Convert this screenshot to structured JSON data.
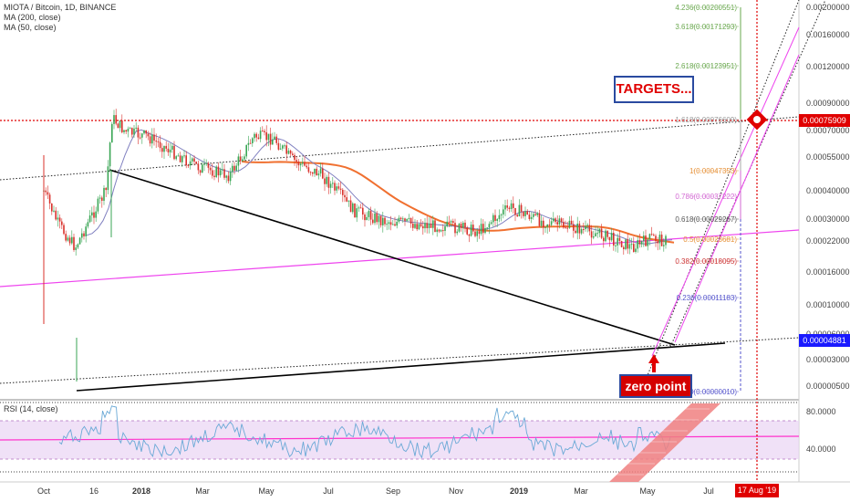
{
  "header": {
    "symbol_line": "MIOTA / Bitcoin, 1D, BINANCE",
    "ma200": "MA (200, close)",
    "ma50": "MA (50, close)",
    "rsi": "RSI (14, close)"
  },
  "chart_data": {
    "type": "line",
    "title": "MIOTA / Bitcoin, 1D, BINANCE",
    "scale": "log",
    "price_axis_ticks": [
      "0.00200000",
      "0.00160000",
      "0.00120000",
      "0.00090000",
      "0.00070000",
      "0.00055000",
      "0.00040000",
      "0.00030000",
      "0.00022000",
      "0.00016000",
      "0.00010000",
      "0.00006000",
      "0.00003000",
      "0.00000500"
    ],
    "x_tick_labels": [
      "Oct",
      "16",
      "2018",
      "Mar",
      "May",
      "Jul",
      "Sep",
      "Nov",
      "2019",
      "Mar",
      "May",
      "Jul"
    ],
    "price_series": {
      "name": "MIOTA/BTC",
      "x": [
        "2017-10-01",
        "2017-10-15",
        "2017-11-01",
        "2017-11-15",
        "2017-12-01",
        "2017-12-07",
        "2017-12-20",
        "2018-01-10",
        "2018-02-01",
        "2018-03-01",
        "2018-04-01",
        "2018-04-25",
        "2018-05-15",
        "2018-06-01",
        "2018-07-01",
        "2018-08-01",
        "2018-09-01",
        "2018-10-01",
        "2018-11-01",
        "2018-12-01",
        "2019-01-01",
        "2019-02-01",
        "2019-03-01",
        "2019-04-01",
        "2019-05-01",
        "2019-05-20",
        "2019-06-01"
      ],
      "y": [
        0.00011,
        6.5e-05,
        4.5e-05,
        7e-05,
        0.00011,
        0.00035,
        0.00028,
        0.00026,
        0.00021,
        0.00016,
        0.00014,
        0.00026,
        0.00025,
        0.00018,
        0.00014,
        8e-05,
        6.8e-05,
        6.5e-05,
        6.2e-05,
        5.8e-05,
        8.5e-05,
        6.8e-05,
        6.2e-05,
        5.5e-05,
        4.5e-05,
        5.2e-05,
        5e-05
      ]
    },
    "ma50": {
      "name": "MA (50, close)",
      "color": "#8080c0"
    },
    "ma200": {
      "name": "MA (200, close)",
      "color": "#f07030"
    },
    "current_price": "0.00004881",
    "target_price": "0.00075909",
    "fibonacci_levels": [
      {
        "label": "4.236(0.00200551)",
        "color": "#6aa84f"
      },
      {
        "label": "3.618(0.00171293)",
        "color": "#6aa84f"
      },
      {
        "label": "2.618(0.00123951)",
        "color": "#6aa84f"
      },
      {
        "label": "1.618(0.00076609)",
        "color": "#999999"
      },
      {
        "label": "1(0.00047353)",
        "color": "#e69138"
      },
      {
        "label": "0.786(0.00037222)",
        "color": "#d36ad3"
      },
      {
        "label": "0.618(0.00029267)",
        "color": "#555555"
      },
      {
        "label": "0.5(0.00023681)",
        "color": "#e69138"
      },
      {
        "label": "0.382(0.00018095)",
        "color": "#cc3333"
      },
      {
        "label": "0.236(0.00011183)",
        "color": "#5555cc"
      },
      {
        "label": "0(0.00000010)",
        "color": "#5555cc"
      }
    ],
    "annotations": {
      "targets": "TARGETS...",
      "zero_point": "zero point"
    },
    "rsi": {
      "name": "RSI (14, close)",
      "ticks": [
        "80.0000",
        "40.0000"
      ],
      "upper_band": 70,
      "lower_band": 30
    },
    "date_badge": "17 Aug '19"
  }
}
